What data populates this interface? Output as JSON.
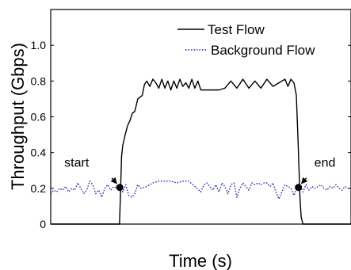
{
  "chart_data": {
    "type": "line",
    "xlabel": "Time (s)",
    "ylabel": "Throughput (Gbps)",
    "xlim": [
      0,
      100
    ],
    "ylim": [
      0,
      1.2
    ],
    "yticks": [
      0,
      0.2,
      0.4,
      0.6,
      0.8,
      1.0
    ],
    "ytick_labels": [
      "0",
      "0.2",
      "0.4",
      "0.6",
      "0.8",
      "1.0"
    ],
    "grid": false,
    "legend_position": "top-right",
    "series": [
      {
        "name": "Test Flow",
        "color": "#000000",
        "line_style": "solid",
        "x": [
          0,
          22.9,
          23.2,
          23.6,
          24.0,
          24.8,
          25.6,
          26.4,
          27.2,
          28.0,
          29.0,
          30.5,
          31.2,
          32.0,
          33.0,
          34.0,
          35.0,
          36.0,
          37.0,
          38.0,
          39.0,
          40.0,
          41.0,
          42.0,
          43.0,
          44.0,
          45.0,
          46.0,
          47.0,
          48.0,
          49.0,
          50.0,
          52.0,
          54.0,
          56.0,
          58.0,
          60.0,
          62.0,
          64.0,
          66.0,
          68.0,
          70.0,
          72.0,
          74.0,
          76.0,
          78.0,
          79.0,
          80.0,
          81.0,
          81.8,
          82.4,
          83.0,
          83.4,
          84.0,
          100
        ],
        "y": [
          0,
          0,
          0.15,
          0.38,
          0.44,
          0.5,
          0.55,
          0.58,
          0.62,
          0.63,
          0.7,
          0.72,
          0.78,
          0.8,
          0.77,
          0.81,
          0.79,
          0.76,
          0.81,
          0.76,
          0.8,
          0.75,
          0.8,
          0.76,
          0.81,
          0.77,
          0.79,
          0.76,
          0.81,
          0.76,
          0.8,
          0.75,
          0.75,
          0.75,
          0.75,
          0.76,
          0.8,
          0.76,
          0.81,
          0.76,
          0.8,
          0.76,
          0.81,
          0.77,
          0.79,
          0.81,
          0.77,
          0.81,
          0.79,
          0.72,
          0.45,
          0.15,
          0.04,
          0,
          0
        ]
      },
      {
        "name": "Background Flow",
        "color": "#1f1fd6",
        "line_style": "dotted",
        "x": [
          0,
          1,
          2,
          3,
          4,
          5,
          6,
          7,
          8,
          9,
          10,
          11,
          12,
          13,
          14,
          15,
          16,
          17,
          18,
          19,
          20,
          21,
          22,
          23,
          24,
          25,
          26,
          27,
          28,
          29,
          30,
          32,
          34,
          36,
          38,
          40,
          42,
          44,
          46,
          48,
          50,
          51,
          52,
          53,
          54,
          55,
          56,
          57,
          58,
          59,
          60,
          61,
          62,
          63,
          64,
          65,
          66,
          67,
          68,
          69,
          70,
          71,
          72,
          73,
          74,
          75,
          76,
          77,
          78,
          79,
          80,
          81,
          82,
          83,
          84,
          85,
          86,
          87,
          88,
          89,
          90,
          91,
          92,
          93,
          94,
          95,
          96,
          97,
          98,
          99,
          100
        ],
        "y": [
          0.17,
          0.19,
          0.18,
          0.2,
          0.19,
          0.21,
          0.18,
          0.2,
          0.19,
          0.23,
          0.2,
          0.17,
          0.19,
          0.24,
          0.22,
          0.17,
          0.19,
          0.15,
          0.2,
          0.22,
          0.19,
          0.21,
          0.2,
          0.21,
          0.18,
          0.22,
          0.16,
          0.15,
          0.17,
          0.22,
          0.2,
          0.21,
          0.23,
          0.24,
          0.24,
          0.24,
          0.23,
          0.24,
          0.24,
          0.21,
          0.18,
          0.22,
          0.23,
          0.21,
          0.19,
          0.22,
          0.18,
          0.23,
          0.21,
          0.17,
          0.22,
          0.23,
          0.15,
          0.2,
          0.23,
          0.21,
          0.19,
          0.23,
          0.22,
          0.23,
          0.22,
          0.23,
          0.23,
          0.21,
          0.23,
          0.18,
          0.14,
          0.18,
          0.22,
          0.21,
          0.2,
          0.16,
          0.21,
          0.22,
          0.18,
          0.22,
          0.19,
          0.21,
          0.2,
          0.21,
          0.22,
          0.2,
          0.19,
          0.21,
          0.2,
          0.22,
          0.2,
          0.19,
          0.21,
          0.2,
          0.2
        ]
      }
    ],
    "annotations": [
      {
        "text": "start",
        "x": 23,
        "y": 0.205
      },
      {
        "text": "end",
        "x": 82.5,
        "y": 0.205
      }
    ]
  }
}
